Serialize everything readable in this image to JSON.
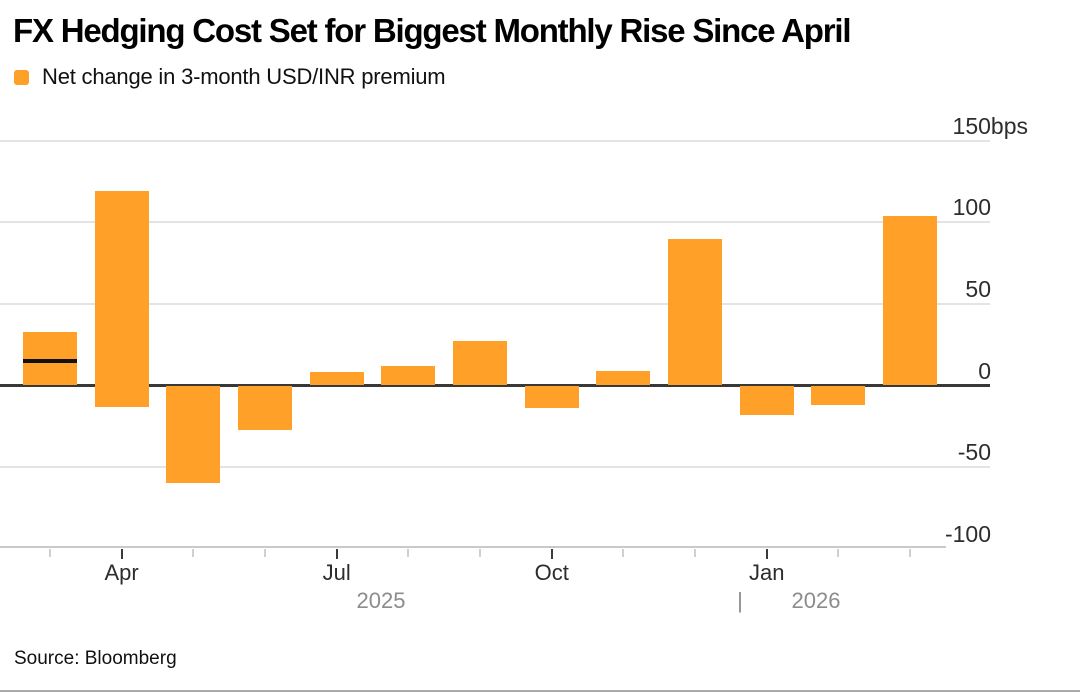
{
  "header": {
    "title": "FX Hedging Cost Set for Biggest Monthly Rise Since April",
    "legend_label": "Net change in 3-month USD/INR premium"
  },
  "footer": {
    "source": "Source: Bloomberg"
  },
  "colors": {
    "bar": "#FFA128",
    "marker_line": "#111111",
    "zero_line": "#383838",
    "gridline": "#e4e4e4",
    "axis_line": "#c9c9c9",
    "tick_major": "#3a3a3a",
    "tick_minor": "#cfcfcf",
    "label_dark": "#2d2d2d",
    "label_gray": "#8c8c8c"
  },
  "chart_data": {
    "type": "bar",
    "title": "FX Hedging Cost Set for Biggest Monthly Rise Since April",
    "series_name": "Net change in 3-month USD/INR premium",
    "unit": "bps",
    "ylim": [
      -100,
      150
    ],
    "grid": true,
    "legend_position": "top-left",
    "yticks": [
      {
        "value": 150,
        "label": "150bps"
      },
      {
        "value": 100,
        "label": "100"
      },
      {
        "value": 50,
        "label": "50"
      },
      {
        "value": 0,
        "label": "0"
      },
      {
        "value": -50,
        "label": "-50"
      },
      {
        "value": -100,
        "label": "-100"
      }
    ],
    "bars": [
      {
        "month": "Mar 2025",
        "value": 33,
        "marker_line": 15
      },
      {
        "month": "Apr 2025",
        "value": 119,
        "bar_low": -13
      },
      {
        "month": "May 2025",
        "value": -60
      },
      {
        "month": "Jun 2025",
        "value": -27
      },
      {
        "month": "Jul 2025",
        "value": 8
      },
      {
        "month": "Aug 2025",
        "value": 12
      },
      {
        "month": "Sep 2025",
        "value": 27
      },
      {
        "month": "Oct 2025",
        "value": -14
      },
      {
        "month": "Nov 2025",
        "value": 9
      },
      {
        "month": "Dec 2025",
        "value": 90
      },
      {
        "month": "Jan 2026",
        "value": -18
      },
      {
        "month": "Feb 2026",
        "value": -12
      },
      {
        "month": "Mar 2026",
        "value": 104
      }
    ],
    "xticks_labeled": [
      {
        "bar_index": 1,
        "label": "Apr"
      },
      {
        "bar_index": 4,
        "label": "Jul"
      },
      {
        "bar_index": 7,
        "label": "Oct"
      },
      {
        "bar_index": 10,
        "label": "Jan"
      }
    ],
    "year_labels": [
      "2025",
      "2026"
    ],
    "year_separator": "|"
  }
}
